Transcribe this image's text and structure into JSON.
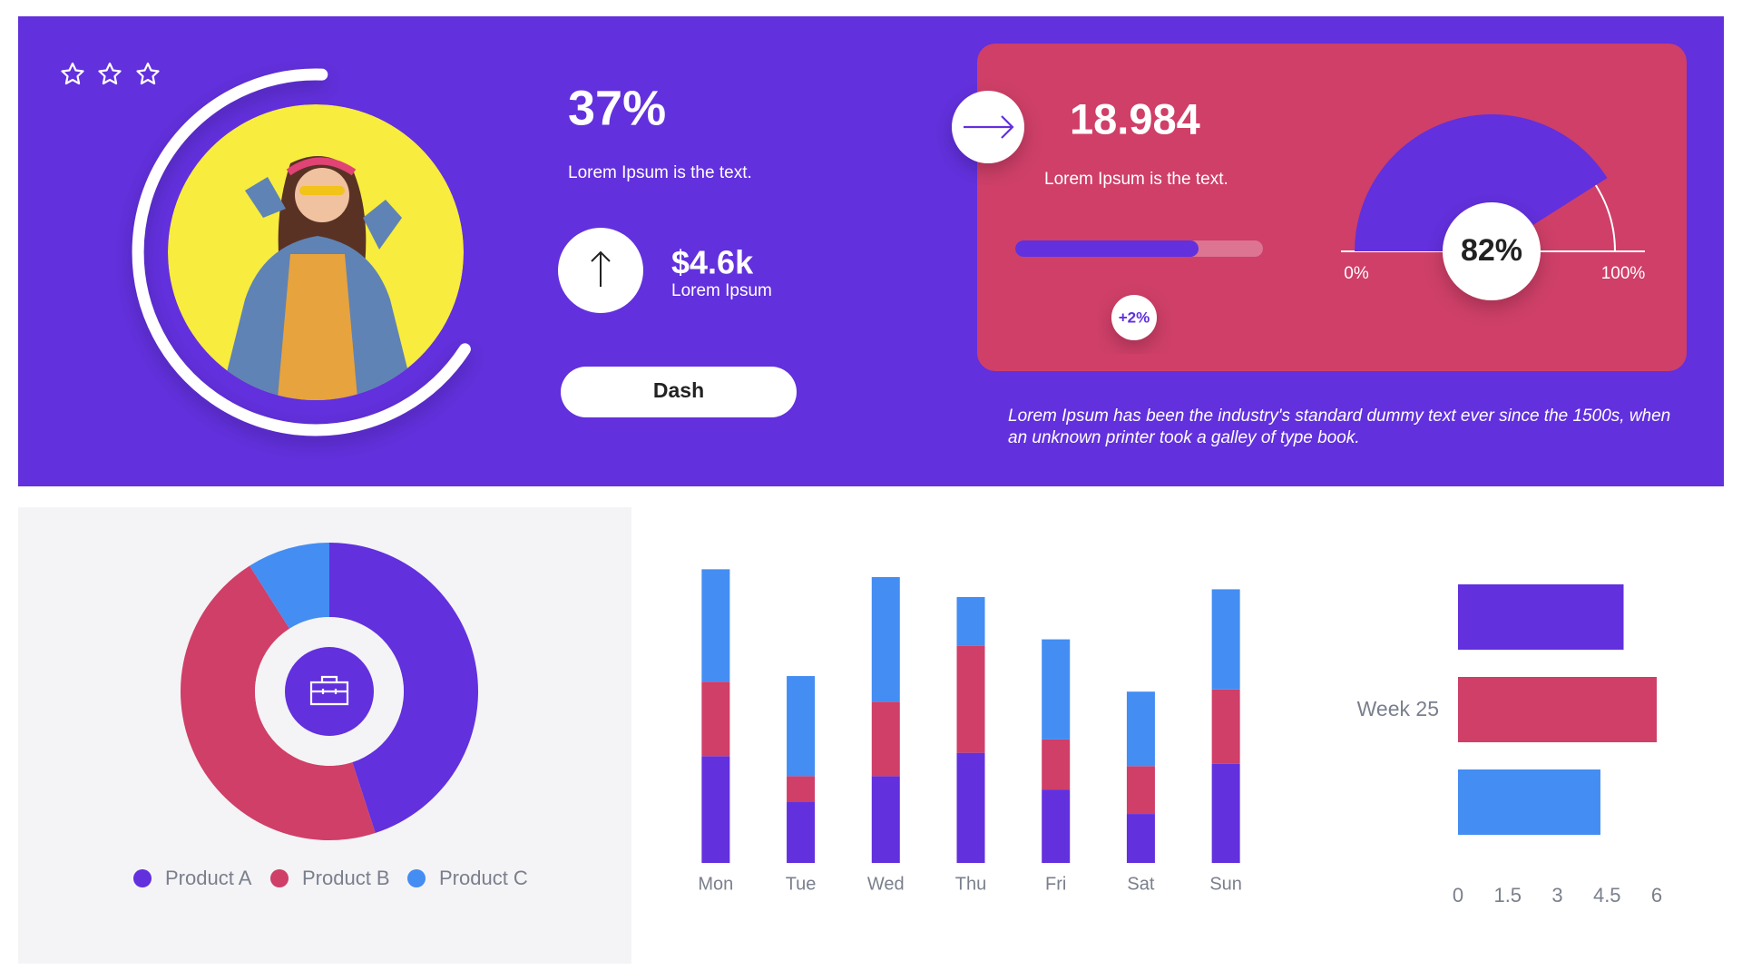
{
  "hero": {
    "headline": "37%",
    "text": "Lorem Ipsum is the text.",
    "amount": "$4.6k",
    "amount_caption": "Lorem Ipsum",
    "button": "Dash"
  },
  "kpi_card": {
    "value": "18.984",
    "text": "Lorem Ipsum is the text.",
    "progress": 74,
    "change": "+2%"
  },
  "note": [
    "Lorem Ipsum has been the industry's standard dummy text ever since the 1500s, when",
    "an unknown printer took a galley of type book."
  ],
  "chart_data": [
    {
      "type": "donut",
      "categories": [
        "Product A",
        "Product B",
        "Product C"
      ],
      "values": [
        45,
        46,
        9
      ],
      "colors": [
        "#6230dd",
        "#cf3f68",
        "#448df2"
      ],
      "legend": "bottom"
    },
    {
      "type": "bar",
      "stacked": true,
      "categories": [
        "Mon",
        "Tue",
        "Wed",
        "Thu",
        "Fri",
        "Sat",
        "Sun"
      ],
      "series": [
        {
          "color": "#6230dd",
          "values": [
            96,
            55,
            78,
            99,
            66,
            44,
            89
          ]
        },
        {
          "color": "#cf3f68",
          "values": [
            67,
            23,
            67,
            96,
            45,
            43,
            67
          ]
        },
        {
          "color": "#448df2",
          "values": [
            101,
            90,
            112,
            44,
            90,
            67,
            90
          ]
        }
      ],
      "ylim": [
        0,
        270
      ]
    },
    {
      "type": "hbar",
      "categories": [
        "Week 25"
      ],
      "series": [
        {
          "color": "#6230dd",
          "values": [
            5
          ]
        },
        {
          "color": "#cf3f68",
          "values": [
            6
          ]
        },
        {
          "color": "#448df2",
          "values": [
            4.3
          ]
        }
      ],
      "xlim": [
        0,
        6
      ],
      "xticks": [
        0,
        1.5,
        3,
        4.5,
        6
      ]
    },
    {
      "type": "gauge",
      "values": [
        82
      ],
      "value_labels": [
        "82%"
      ],
      "color": "#6230dd",
      "xlim": [
        0,
        100
      ],
      "xticks": [
        {
          "value": 0,
          "label": "0%"
        },
        {
          "value": 100,
          "label": "100%"
        }
      ]
    }
  ]
}
